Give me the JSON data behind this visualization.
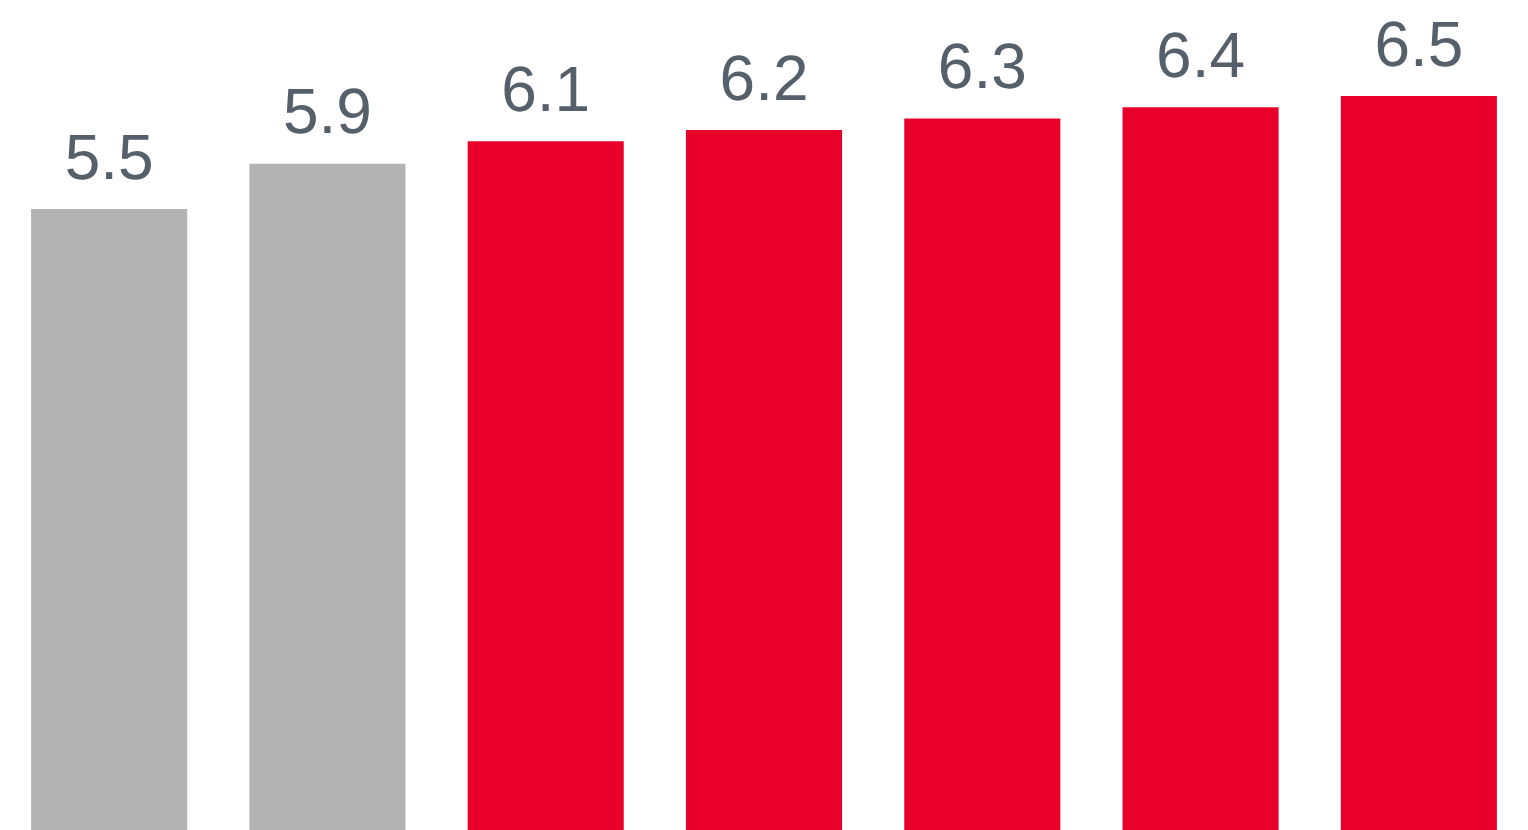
{
  "chart_data": {
    "type": "bar",
    "categories": [
      null,
      null,
      null,
      null,
      null,
      null,
      null
    ],
    "values": [
      5.5,
      5.9,
      6.1,
      6.2,
      6.3,
      6.4,
      6.5
    ],
    "colors": [
      "#b3b3b3",
      "#b3b3b3",
      "#e8002a",
      "#e8002a",
      "#e8002a",
      "#e8002a",
      "#e8002a"
    ],
    "ylim": [
      0,
      6.5
    ],
    "tick_labels": false,
    "data_labels": true
  }
}
